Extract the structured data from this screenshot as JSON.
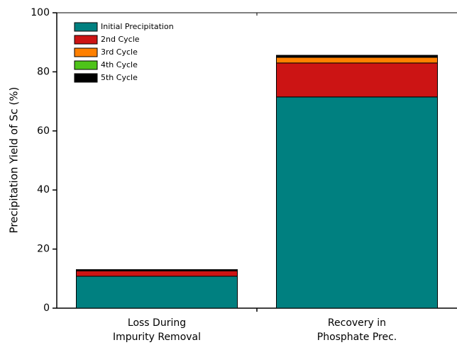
{
  "chart_data": {
    "type": "stacked_bar",
    "y_label": "Precipitation Yield of Sc (%)",
    "categories": [
      "Loss During\nImpurity Removal",
      "Recovery in\nPhosphate Prec."
    ],
    "series": [
      {
        "name": "Initial Precipitation",
        "color": "#008080",
        "values": [
          10.8,
          71.5
        ]
      },
      {
        "name": "2nd Cycle",
        "color": "#cc1414",
        "values": [
          1.8,
          11.5
        ]
      },
      {
        "name": "3rd Cycle",
        "color": "#ff8000",
        "values": [
          0.1,
          1.9
        ]
      },
      {
        "name": "4th Cycle",
        "color": "#4ec31a",
        "values": [
          0.05,
          0.1
        ]
      },
      {
        "name": "5th Cycle",
        "color": "#000000",
        "values": [
          0.3,
          0.6
        ]
      }
    ],
    "ylim": [
      0,
      100
    ],
    "yticks": [
      0,
      20,
      40,
      60,
      80,
      100
    ],
    "legend": "upper-left"
  }
}
